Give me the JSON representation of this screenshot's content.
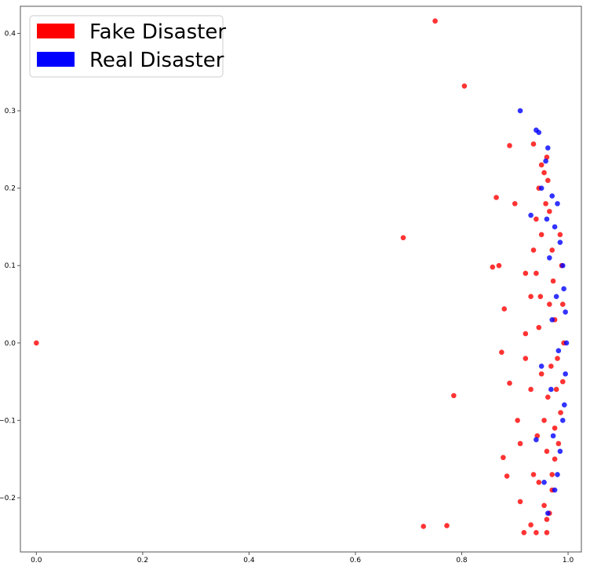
{
  "chart_data": {
    "type": "scatter",
    "title": "",
    "xlabel": "",
    "ylabel": "",
    "xlim": [
      -0.03,
      1.025
    ],
    "ylim": [
      -0.27,
      0.435
    ],
    "xticks": [
      0.0,
      0.2,
      0.4,
      0.6,
      0.8,
      1.0
    ],
    "xtick_labels": [
      "0.0",
      "0.2",
      "0.4",
      "0.6",
      "0.8",
      "1.0"
    ],
    "yticks": [
      -0.2,
      -0.1,
      0.0,
      0.1,
      0.2,
      0.3,
      0.4
    ],
    "ytick_labels": [
      "−0.2",
      "−0.1",
      "0.0",
      "0.1",
      "0.2",
      "0.3",
      "0.4"
    ],
    "grid": false,
    "legend_position": "top-left",
    "legend": [
      {
        "label": "Fake Disaster",
        "color": "#ff0000"
      },
      {
        "label": "Real Disaster",
        "color": "#0000ff"
      }
    ],
    "series": [
      {
        "name": "Fake Disaster",
        "color": "#ff0000",
        "points": [
          [
            0.0,
            0.0
          ],
          [
            0.75,
            0.416
          ],
          [
            0.805,
            0.332
          ],
          [
            0.69,
            0.136
          ],
          [
            0.785,
            -0.068
          ],
          [
            0.728,
            -0.237
          ],
          [
            0.772,
            -0.236
          ],
          [
            0.865,
            0.188
          ],
          [
            0.89,
            0.255
          ],
          [
            0.935,
            0.257
          ],
          [
            0.9,
            0.18
          ],
          [
            0.858,
            0.098
          ],
          [
            0.87,
            0.1
          ],
          [
            0.88,
            0.044
          ],
          [
            0.875,
            -0.012
          ],
          [
            0.89,
            -0.052
          ],
          [
            0.878,
            -0.148
          ],
          [
            0.885,
            -0.172
          ],
          [
            0.91,
            -0.205
          ],
          [
            0.93,
            -0.235
          ],
          [
            0.94,
            -0.245
          ],
          [
            0.96,
            -0.245
          ],
          [
            0.917,
            -0.245
          ],
          [
            0.96,
            -0.228
          ],
          [
            0.965,
            -0.22
          ],
          [
            0.91,
            -0.13
          ],
          [
            0.905,
            -0.1
          ],
          [
            0.92,
            0.012
          ],
          [
            0.93,
            0.06
          ],
          [
            0.92,
            0.09
          ],
          [
            0.945,
            0.2
          ],
          [
            0.95,
            0.23
          ],
          [
            0.955,
            0.22
          ],
          [
            0.94,
            0.16
          ],
          [
            0.935,
            0.12
          ],
          [
            0.92,
            -0.02
          ],
          [
            0.93,
            -0.06
          ],
          [
            0.935,
            -0.17
          ],
          [
            0.945,
            -0.18
          ],
          [
            0.955,
            -0.21
          ],
          [
            0.97,
            -0.19
          ],
          [
            0.975,
            -0.15
          ],
          [
            0.96,
            0.24
          ],
          [
            0.962,
            0.21
          ],
          [
            0.958,
            0.18
          ],
          [
            0.95,
            0.14
          ],
          [
            0.948,
            0.06
          ],
          [
            0.95,
            -0.04
          ],
          [
            0.955,
            -0.1
          ],
          [
            0.96,
            -0.14
          ],
          [
            0.965,
            0.17
          ],
          [
            0.97,
            0.12
          ],
          [
            0.972,
            0.08
          ],
          [
            0.975,
            0.03
          ],
          [
            0.98,
            -0.02
          ],
          [
            0.978,
            -0.06
          ],
          [
            0.975,
            -0.11
          ],
          [
            0.97,
            -0.17
          ],
          [
            0.985,
            0.14
          ],
          [
            0.988,
            0.1
          ],
          [
            0.99,
            0.05
          ],
          [
            0.992,
            0.0
          ],
          [
            0.99,
            -0.05
          ],
          [
            0.986,
            -0.09
          ],
          [
            0.982,
            -0.13
          ],
          [
            0.94,
            0.09
          ],
          [
            0.945,
            0.02
          ],
          [
            0.942,
            -0.12
          ],
          [
            0.965,
            0.05
          ],
          [
            0.968,
            -0.03
          ],
          [
            0.962,
            -0.07
          ]
        ]
      },
      {
        "name": "Real Disaster",
        "color": "#0000ff",
        "points": [
          [
            0.91,
            0.3
          ],
          [
            0.94,
            0.275
          ],
          [
            0.945,
            0.272
          ],
          [
            0.962,
            0.252
          ],
          [
            0.958,
            0.235
          ],
          [
            0.95,
            0.2
          ],
          [
            0.97,
            0.19
          ],
          [
            0.98,
            0.18
          ],
          [
            0.93,
            0.165
          ],
          [
            0.975,
            0.15
          ],
          [
            0.985,
            0.13
          ],
          [
            0.99,
            0.1
          ],
          [
            0.992,
            0.07
          ],
          [
            0.995,
            0.04
          ],
          [
            0.997,
            0.0
          ],
          [
            0.995,
            -0.04
          ],
          [
            0.993,
            -0.08
          ],
          [
            0.99,
            -0.1
          ],
          [
            0.985,
            -0.14
          ],
          [
            0.98,
            -0.17
          ],
          [
            0.975,
            -0.19
          ],
          [
            0.962,
            -0.22
          ],
          [
            0.94,
            -0.125
          ],
          [
            0.955,
            -0.18
          ],
          [
            0.95,
            -0.03
          ],
          [
            0.965,
            0.11
          ],
          [
            0.97,
            0.03
          ],
          [
            0.968,
            -0.06
          ],
          [
            0.978,
            0.06
          ],
          [
            0.982,
            -0.01
          ],
          [
            0.972,
            -0.12
          ],
          [
            0.96,
            0.16
          ]
        ]
      }
    ]
  }
}
